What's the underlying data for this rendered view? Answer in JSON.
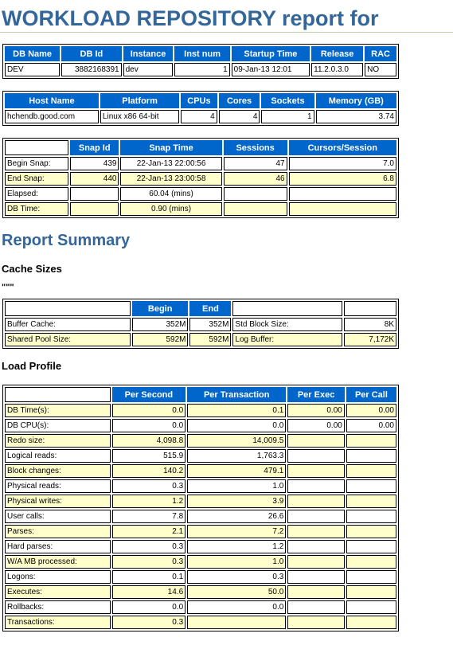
{
  "title": "WORKLOAD REPOSITORY report for",
  "db_table": {
    "headers": [
      "DB Name",
      "DB Id",
      "Instance",
      "Inst num",
      "Startup Time",
      "Release",
      "RAC"
    ],
    "row": [
      "DEV",
      "3882168391",
      "dev",
      "1",
      "09-Jan-13 12:01",
      "11.2.0.3.0",
      "NO"
    ]
  },
  "host_table": {
    "headers": [
      "Host Name",
      "Platform",
      "CPUs",
      "Cores",
      "Sockets",
      "Memory (GB)"
    ],
    "row": [
      "hchendb.good.com",
      "Linux x86 64-bit",
      "4",
      "4",
      "1",
      "3.74"
    ]
  },
  "snap_table": {
    "headers": [
      "",
      "Snap Id",
      "Snap Time",
      "Sessions",
      "Cursors/Session"
    ],
    "rows": [
      [
        "Begin Snap:",
        "439",
        "22-Jan-13 22:00:56",
        "47",
        "7.0"
      ],
      [
        "End Snap:",
        "440",
        "22-Jan-13 23:00:58",
        "46",
        "6.8"
      ],
      [
        "Elapsed:",
        "",
        "60.04 (mins)",
        "",
        ""
      ],
      [
        "DB Time:",
        "",
        "0.90 (mins)",
        "",
        ""
      ]
    ]
  },
  "report_summary_title": "Report Summary",
  "cache_sizes_title": "Cache Sizes",
  "cache_quotes": "\"\"\"",
  "cache_table": {
    "headers": [
      "",
      "Begin",
      "End",
      "",
      ""
    ],
    "rows": [
      [
        "Buffer Cache:",
        "352M",
        "352M",
        "Std Block Size:",
        "8K"
      ],
      [
        "Shared Pool Size:",
        "592M",
        "592M",
        "Log Buffer:",
        "7,172K"
      ]
    ]
  },
  "load_profile_title": "Load Profile",
  "load_table": {
    "headers": [
      "",
      "Per Second",
      "Per Transaction",
      "Per Exec",
      "Per Call"
    ],
    "rows": [
      [
        "DB Time(s):",
        "0.0",
        "0.1",
        "0.00",
        "0.00"
      ],
      [
        "DB CPU(s):",
        "0.0",
        "0.0",
        "0.00",
        "0.00"
      ],
      [
        "Redo size:",
        "4,098.8",
        "14,009.5",
        "",
        ""
      ],
      [
        "Logical reads:",
        "515.9",
        "1,763.3",
        "",
        ""
      ],
      [
        "Block changes:",
        "140.2",
        "479.1",
        "",
        ""
      ],
      [
        "Physical reads:",
        "0.3",
        "1.0",
        "",
        ""
      ],
      [
        "Physical writes:",
        "1.2",
        "3.9",
        "",
        ""
      ],
      [
        "User calls:",
        "7.8",
        "26.6",
        "",
        ""
      ],
      [
        "Parses:",
        "2.1",
        "7.2",
        "",
        ""
      ],
      [
        "Hard parses:",
        "0.3",
        "1.2",
        "",
        ""
      ],
      [
        "W/A MB processed:",
        "0.3",
        "1.0",
        "",
        ""
      ],
      [
        "Logons:",
        "0.1",
        "0.3",
        "",
        ""
      ],
      [
        "Executes:",
        "14.6",
        "50.0",
        "",
        ""
      ],
      [
        "Rollbacks:",
        "0.0",
        "0.0",
        "",
        ""
      ],
      [
        "Transactions:",
        "0.3",
        "",
        "",
        ""
      ]
    ]
  }
}
